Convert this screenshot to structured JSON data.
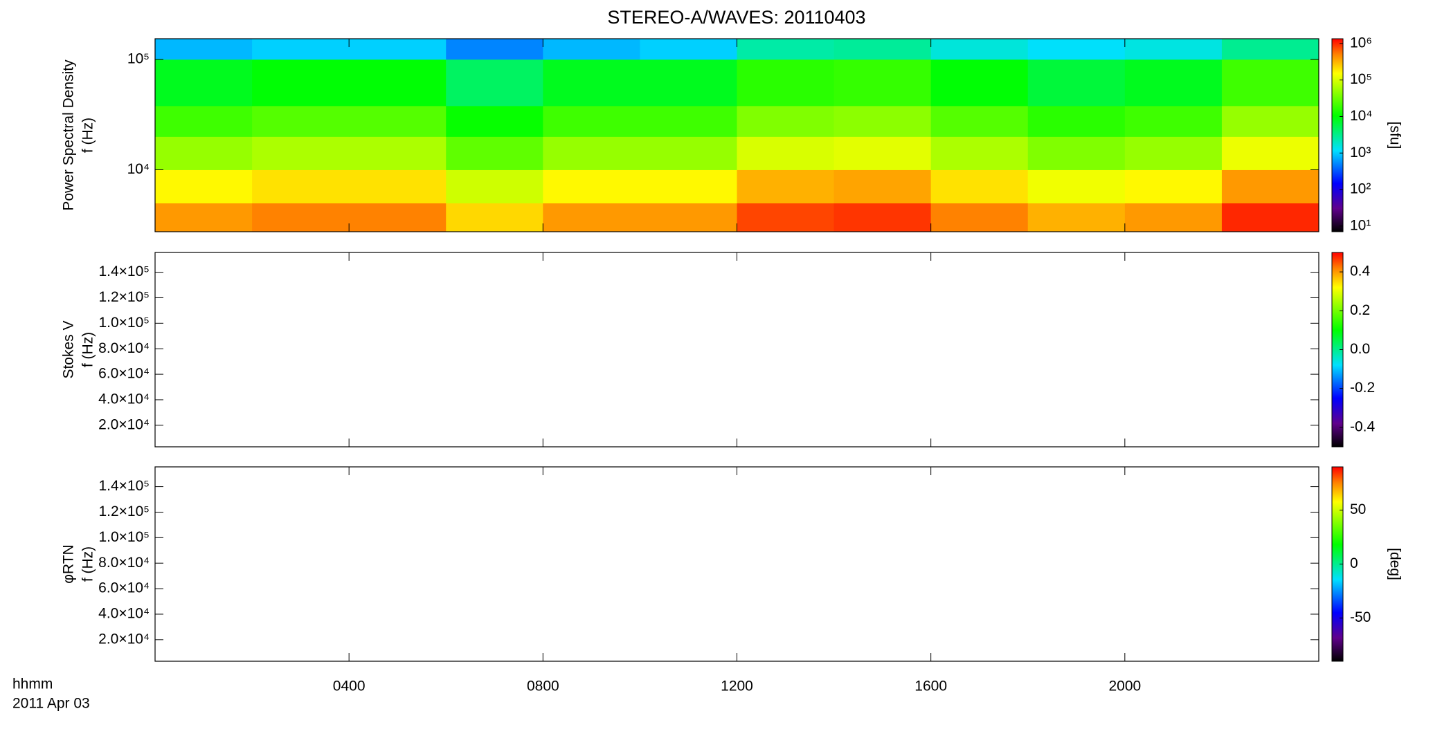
{
  "chart_data": [
    {
      "type": "heatmap",
      "title": "STEREO-A/WAVES: 20110403",
      "ylabel": [
        "Power Spectral Density",
        "f (Hz)"
      ],
      "log_y": true,
      "ylim": [
        2750,
        153500
      ],
      "yticks": [
        {
          "value": 10000,
          "label": "10⁴"
        },
        {
          "value": 100000,
          "label": "10⁵"
        }
      ],
      "x_edges": [
        0,
        2,
        4,
        6,
        8,
        10,
        12,
        14,
        16,
        18,
        20,
        22,
        24
      ],
      "y_edges": [
        2750,
        5000,
        10000,
        20000,
        38000,
        100000,
        153500
      ],
      "z": [
        [
          400000,
          500000,
          500000,
          220000,
          400000,
          400000,
          800000,
          900000,
          500000,
          320000,
          400000,
          1000000
        ],
        [
          160000,
          200000,
          200000,
          90000,
          160000,
          160000,
          320000,
          360000,
          200000,
          130000,
          160000,
          400000
        ],
        [
          50000,
          63000,
          63000,
          28000,
          50000,
          50000,
          100000,
          112000,
          63000,
          40000,
          50000,
          125000
        ],
        [
          20000,
          25000,
          25000,
          11000,
          20000,
          20000,
          40000,
          45000,
          25000,
          16000,
          20000,
          50000
        ],
        [
          8000,
          10000,
          10000,
          4500,
          8000,
          8000,
          16000,
          18000,
          10000,
          6300,
          8000,
          20000
        ],
        [
          800,
          1000,
          1000,
          500,
          800,
          1000,
          2500,
          2800,
          1600,
          1200,
          1500,
          3000
        ]
      ],
      "log_z": true,
      "zlim": [
        7,
        1350000
      ],
      "zticks": [
        {
          "value": 10,
          "label": "10¹"
        },
        {
          "value": 100,
          "label": "10²"
        },
        {
          "value": 1000,
          "label": "10³"
        },
        {
          "value": 10000,
          "label": "10⁴"
        },
        {
          "value": 100000,
          "label": "10⁵"
        },
        {
          "value": 1000000,
          "label": "10⁶"
        }
      ],
      "zlabel": "[sfu]"
    },
    {
      "type": "heatmap",
      "ylabel": [
        "Stokes V",
        "f (Hz)"
      ],
      "ylim": [
        3100,
        155500
      ],
      "yticks": [
        {
          "value": 20000,
          "label": "2.0×10⁴"
        },
        {
          "value": 40000,
          "label": "4.0×10⁴"
        },
        {
          "value": 60000,
          "label": "6.0×10⁴"
        },
        {
          "value": 80000,
          "label": "8.0×10⁴"
        },
        {
          "value": 100000,
          "label": "1.0×10⁵"
        },
        {
          "value": 120000,
          "label": "1.2×10⁵"
        },
        {
          "value": 140000,
          "label": "1.4×10⁵"
        }
      ],
      "zlim": [
        -0.5,
        0.5
      ],
      "zticks": [
        -0.4,
        -0.2,
        {
          "value": 0,
          "label": "0.0"
        },
        0.2,
        0.4
      ]
    },
    {
      "type": "heatmap",
      "ylabel": [
        "φRTN",
        "f (Hz)"
      ],
      "ylim": [
        3100,
        155500
      ],
      "yticks": [
        {
          "value": 20000,
          "label": "2.0×10⁴"
        },
        {
          "value": 40000,
          "label": "4.0×10⁴"
        },
        {
          "value": 60000,
          "label": "6.0×10⁴"
        },
        {
          "value": 80000,
          "label": "8.0×10⁴"
        },
        {
          "value": 100000,
          "label": "1.0×10⁵"
        },
        {
          "value": 120000,
          "label": "1.2×10⁵"
        },
        {
          "value": 140000,
          "label": "1.4×10⁵"
        }
      ],
      "zlim": [
        -90,
        90
      ],
      "zticks": [
        -50,
        0,
        50
      ],
      "zlabel": "[deg]",
      "xlim": [
        0,
        24
      ],
      "xticks": [
        {
          "value": 4,
          "label": "0400"
        },
        {
          "value": 8,
          "label": "0800"
        },
        {
          "value": 12,
          "label": "1200"
        },
        {
          "value": 16,
          "label": "1600"
        },
        {
          "value": 20,
          "label": "2000"
        }
      ],
      "xlabel": "hhmm",
      "date_label": "2011 Apr 03"
    }
  ]
}
